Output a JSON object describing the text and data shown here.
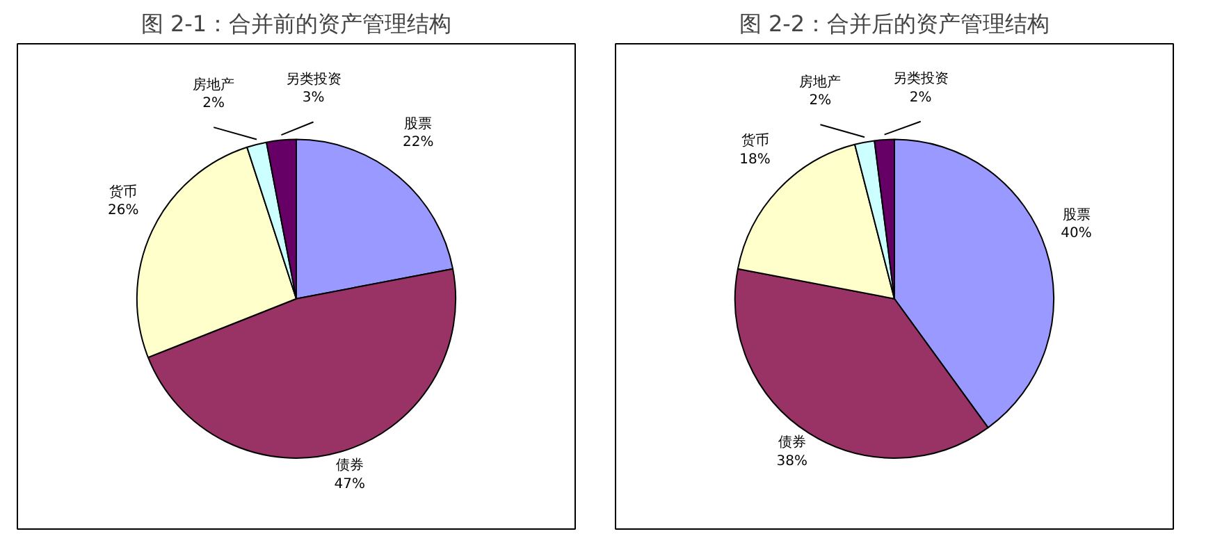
{
  "chart_data": [
    {
      "type": "pie",
      "title": "图 2-1：合并前的资产管理结构",
      "categories": [
        "股票",
        "债券",
        "货币",
        "房地产",
        "另类投资"
      ],
      "values": [
        22,
        47,
        26,
        2,
        3
      ],
      "value_labels": [
        "22%",
        "47%",
        "26%",
        "2%",
        "3%"
      ],
      "colors": [
        "#9999ff",
        "#993366",
        "#ffffcc",
        "#ccffff",
        "#660066"
      ],
      "data_labels": true
    },
    {
      "type": "pie",
      "title": "图 2-2：合并后的资产管理结构",
      "categories": [
        "股票",
        "债券",
        "货币",
        "房地产",
        "另类投资"
      ],
      "values": [
        40,
        38,
        18,
        2,
        2
      ],
      "value_labels": [
        "40%",
        "38%",
        "18%",
        "2%",
        "2%"
      ],
      "colors": [
        "#9999ff",
        "#993366",
        "#ffffcc",
        "#ccffff",
        "#660066"
      ],
      "data_labels": true
    }
  ]
}
